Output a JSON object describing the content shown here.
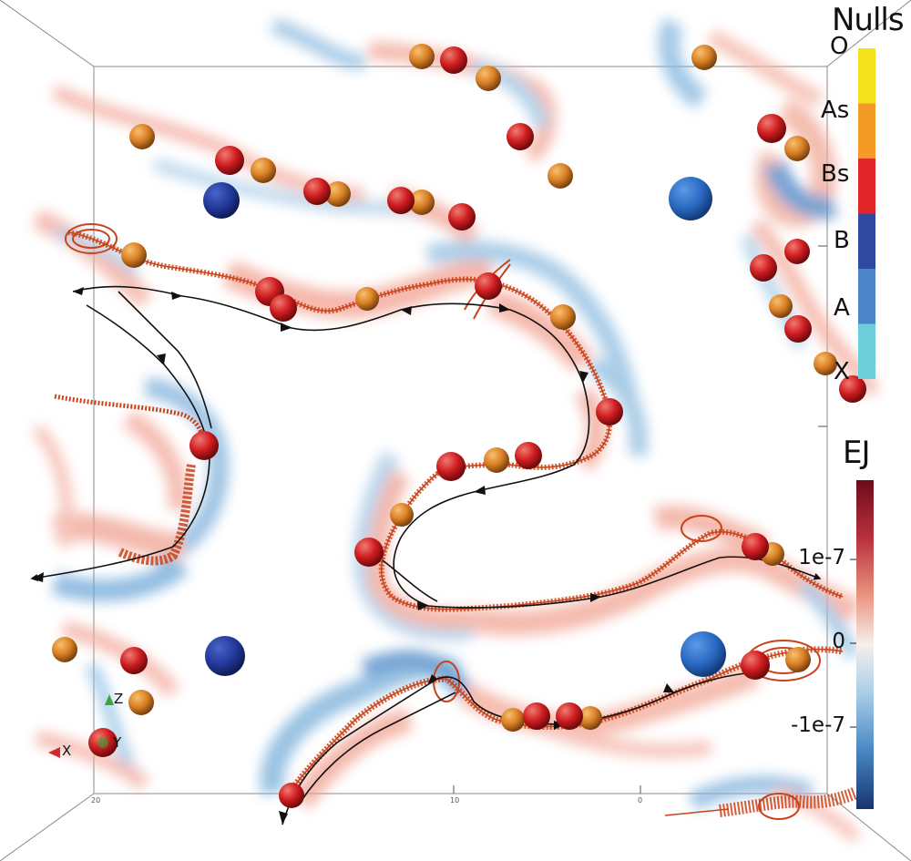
{
  "nulls_legend": {
    "title": "Nulls",
    "entries": [
      {
        "label": "O",
        "color": "#f5e11e"
      },
      {
        "label": "As",
        "color": "#f39a27"
      },
      {
        "label": "Bs",
        "color": "#e3262a"
      },
      {
        "label": "B",
        "color": "#2f4aa0"
      },
      {
        "label": "A",
        "color": "#4c86c8"
      },
      {
        "label": "X",
        "color": "#6ccfd9"
      }
    ]
  },
  "ej_colorbar": {
    "title": "EJ",
    "ticks": [
      "1e-7",
      "0",
      "-1e-7"
    ],
    "colors": [
      "#7a0b1e",
      "#c8434a",
      "#f1a58b",
      "#f7f1ef",
      "#b8d7ea",
      "#4c8ec6",
      "#1a3f82"
    ]
  },
  "orientation_axes": {
    "z": "Z",
    "x": "X",
    "y": "Y"
  },
  "box_ticks": {
    "bottom_left": "20",
    "bottom_mid": "10",
    "bottom_right": "0"
  },
  "colors": {
    "as_null": "#d27d20",
    "bs_null": "#c8181c",
    "b_null": "#23399a",
    "a_null": "#2d6cc4",
    "field_line": "#c8431a",
    "positive_ej": "#f0a090",
    "negative_ej": "#7db4dd",
    "arrow": "#111111"
  }
}
